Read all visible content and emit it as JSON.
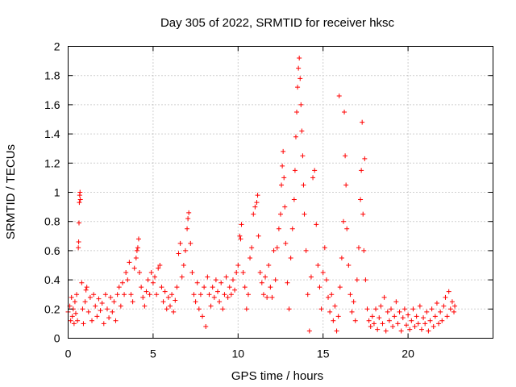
{
  "chart_data": {
    "type": "scatter",
    "title": "Day 305 of 2022, SRMTID for receiver hksc",
    "xlabel": "GPS time / hours",
    "ylabel": "SRMTID / TECUs",
    "xlim": [
      0,
      25
    ],
    "ylim": [
      0,
      2
    ],
    "x_ticks": [
      0,
      5,
      10,
      15,
      20
    ],
    "x_tick_labels": [
      "0",
      "5",
      "10",
      "15",
      "20"
    ],
    "y_ticks": [
      0,
      0.2,
      0.4,
      0.6,
      0.8,
      1.0,
      1.2,
      1.4,
      1.6,
      1.8,
      2.0
    ],
    "y_tick_labels": [
      "0",
      "0.2",
      "0.4",
      "0.6",
      "0.8",
      "1",
      "1.2",
      "1.4",
      "1.6",
      "1.8",
      "2"
    ],
    "grid": true,
    "marker": "+",
    "series_color": "#ff0000",
    "series": [
      {
        "name": "SRMTID",
        "points": [
          [
            0.0,
            0.18
          ],
          [
            0.1,
            0.22
          ],
          [
            0.15,
            0.12
          ],
          [
            0.2,
            0.28
          ],
          [
            0.25,
            0.15
          ],
          [
            0.3,
            0.2
          ],
          [
            0.35,
            0.1
          ],
          [
            0.4,
            0.25
          ],
          [
            0.45,
            0.17
          ],
          [
            0.5,
            0.3
          ],
          [
            0.55,
            0.12
          ],
          [
            0.6,
            0.62
          ],
          [
            0.62,
            0.66
          ],
          [
            0.64,
            0.79
          ],
          [
            0.66,
            0.93
          ],
          [
            0.68,
            0.98
          ],
          [
            0.7,
            1.0
          ],
          [
            0.72,
            0.95
          ],
          [
            0.8,
            0.38
          ],
          [
            0.85,
            0.2
          ],
          [
            0.9,
            0.1
          ],
          [
            1.0,
            0.25
          ],
          [
            1.05,
            0.33
          ],
          [
            1.1,
            0.35
          ],
          [
            1.2,
            0.18
          ],
          [
            1.3,
            0.28
          ],
          [
            1.4,
            0.12
          ],
          [
            1.5,
            0.3
          ],
          [
            1.6,
            0.22
          ],
          [
            1.7,
            0.15
          ],
          [
            1.8,
            0.27
          ],
          [
            1.9,
            0.19
          ],
          [
            2.0,
            0.24
          ],
          [
            2.1,
            0.1
          ],
          [
            2.2,
            0.3
          ],
          [
            2.3,
            0.2
          ],
          [
            2.4,
            0.14
          ],
          [
            2.5,
            0.28
          ],
          [
            2.6,
            0.18
          ],
          [
            2.7,
            0.25
          ],
          [
            2.8,
            0.12
          ],
          [
            2.9,
            0.3
          ],
          [
            3.0,
            0.35
          ],
          [
            3.1,
            0.22
          ],
          [
            3.2,
            0.38
          ],
          [
            3.3,
            0.3
          ],
          [
            3.4,
            0.45
          ],
          [
            3.5,
            0.4
          ],
          [
            3.6,
            0.52
          ],
          [
            3.7,
            0.3
          ],
          [
            3.8,
            0.25
          ],
          [
            3.9,
            0.48
          ],
          [
            4.0,
            0.55
          ],
          [
            4.05,
            0.6
          ],
          [
            4.1,
            0.62
          ],
          [
            4.15,
            0.68
          ],
          [
            4.2,
            0.45
          ],
          [
            4.3,
            0.35
          ],
          [
            4.4,
            0.28
          ],
          [
            4.5,
            0.22
          ],
          [
            4.6,
            0.32
          ],
          [
            4.7,
            0.4
          ],
          [
            4.8,
            0.3
          ],
          [
            4.9,
            0.45
          ],
          [
            5.0,
            0.38
          ],
          [
            5.1,
            0.42
          ],
          [
            5.2,
            0.3
          ],
          [
            5.3,
            0.48
          ],
          [
            5.4,
            0.5
          ],
          [
            5.5,
            0.35
          ],
          [
            5.6,
            0.25
          ],
          [
            5.7,
            0.32
          ],
          [
            5.8,
            0.2
          ],
          [
            5.9,
            0.28
          ],
          [
            6.0,
            0.22
          ],
          [
            6.1,
            0.3
          ],
          [
            6.2,
            0.18
          ],
          [
            6.3,
            0.26
          ],
          [
            6.4,
            0.35
          ],
          [
            6.5,
            0.58
          ],
          [
            6.6,
            0.65
          ],
          [
            6.7,
            0.42
          ],
          [
            6.8,
            0.5
          ],
          [
            6.9,
            0.6
          ],
          [
            7.0,
            0.75
          ],
          [
            7.05,
            0.82
          ],
          [
            7.1,
            0.86
          ],
          [
            7.2,
            0.65
          ],
          [
            7.3,
            0.45
          ],
          [
            7.4,
            0.3
          ],
          [
            7.5,
            0.25
          ],
          [
            7.6,
            0.38
          ],
          [
            7.7,
            0.2
          ],
          [
            7.8,
            0.3
          ],
          [
            7.9,
            0.15
          ],
          [
            8.0,
            0.35
          ],
          [
            8.1,
            0.08
          ],
          [
            8.2,
            0.42
          ],
          [
            8.3,
            0.3
          ],
          [
            8.4,
            0.22
          ],
          [
            8.5,
            0.35
          ],
          [
            8.6,
            0.28
          ],
          [
            8.7,
            0.4
          ],
          [
            8.8,
            0.32
          ],
          [
            8.9,
            0.25
          ],
          [
            9.0,
            0.38
          ],
          [
            9.1,
            0.2
          ],
          [
            9.2,
            0.3
          ],
          [
            9.3,
            0.42
          ],
          [
            9.4,
            0.28
          ],
          [
            9.5,
            0.35
          ],
          [
            9.6,
            0.3
          ],
          [
            9.7,
            0.4
          ],
          [
            9.8,
            0.33
          ],
          [
            9.9,
            0.45
          ],
          [
            10.0,
            0.5
          ],
          [
            10.1,
            0.7
          ],
          [
            10.15,
            0.68
          ],
          [
            10.2,
            0.78
          ],
          [
            10.3,
            0.45
          ],
          [
            10.4,
            0.35
          ],
          [
            10.5,
            0.2
          ],
          [
            10.6,
            0.3
          ],
          [
            10.7,
            0.55
          ],
          [
            10.8,
            0.62
          ],
          [
            10.9,
            0.85
          ],
          [
            11.0,
            0.9
          ],
          [
            11.1,
            0.93
          ],
          [
            11.15,
            0.98
          ],
          [
            11.2,
            0.7
          ],
          [
            11.3,
            0.45
          ],
          [
            11.4,
            0.38
          ],
          [
            11.5,
            0.3
          ],
          [
            11.6,
            0.42
          ],
          [
            11.7,
            0.28
          ],
          [
            11.8,
            0.5
          ],
          [
            11.9,
            0.35
          ],
          [
            12.0,
            0.28
          ],
          [
            12.1,
            0.6
          ],
          [
            12.2,
            0.4
          ],
          [
            12.3,
            0.62
          ],
          [
            12.4,
            0.75
          ],
          [
            12.5,
            0.85
          ],
          [
            12.55,
            1.05
          ],
          [
            12.6,
            1.18
          ],
          [
            12.65,
            1.28
          ],
          [
            12.7,
            1.1
          ],
          [
            12.75,
            0.9
          ],
          [
            12.8,
            0.65
          ],
          [
            12.9,
            0.38
          ],
          [
            13.0,
            0.2
          ],
          [
            13.1,
            0.55
          ],
          [
            13.2,
            0.75
          ],
          [
            13.3,
            0.95
          ],
          [
            13.35,
            1.15
          ],
          [
            13.4,
            1.38
          ],
          [
            13.45,
            1.55
          ],
          [
            13.5,
            1.72
          ],
          [
            13.55,
            1.85
          ],
          [
            13.6,
            1.92
          ],
          [
            13.65,
            1.78
          ],
          [
            13.7,
            1.6
          ],
          [
            13.75,
            1.42
          ],
          [
            13.8,
            1.25
          ],
          [
            13.85,
            1.05
          ],
          [
            13.9,
            0.85
          ],
          [
            14.0,
            0.6
          ],
          [
            14.1,
            0.3
          ],
          [
            14.2,
            0.05
          ],
          [
            14.3,
            0.42
          ],
          [
            14.4,
            1.1
          ],
          [
            14.5,
            1.15
          ],
          [
            14.6,
            0.78
          ],
          [
            14.7,
            0.5
          ],
          [
            14.8,
            0.35
          ],
          [
            14.9,
            0.2
          ],
          [
            15.0,
            0.45
          ],
          [
            15.1,
            0.62
          ],
          [
            15.2,
            0.4
          ],
          [
            15.3,
            0.28
          ],
          [
            15.4,
            0.18
          ],
          [
            15.5,
            0.3
          ],
          [
            15.6,
            0.12
          ],
          [
            15.7,
            0.22
          ],
          [
            15.8,
            0.05
          ],
          [
            15.9,
            0.15
          ],
          [
            15.95,
            1.66
          ],
          [
            16.0,
            0.35
          ],
          [
            16.1,
            0.55
          ],
          [
            16.2,
            0.8
          ],
          [
            16.25,
            1.55
          ],
          [
            16.3,
            1.25
          ],
          [
            16.35,
            1.05
          ],
          [
            16.4,
            0.75
          ],
          [
            16.5,
            0.5
          ],
          [
            16.6,
            0.3
          ],
          [
            16.7,
            0.18
          ],
          [
            16.8,
            0.25
          ],
          [
            16.9,
            0.12
          ],
          [
            17.0,
            0.4
          ],
          [
            17.1,
            0.62
          ],
          [
            17.2,
            0.95
          ],
          [
            17.25,
            1.15
          ],
          [
            17.3,
            1.48
          ],
          [
            17.35,
            0.85
          ],
          [
            17.4,
            0.6
          ],
          [
            17.45,
            1.23
          ],
          [
            17.5,
            0.4
          ],
          [
            17.6,
            0.2
          ],
          [
            17.7,
            0.12
          ],
          [
            17.8,
            0.08
          ],
          [
            17.9,
            0.15
          ],
          [
            18.0,
            0.1
          ],
          [
            18.1,
            0.2
          ],
          [
            18.2,
            0.06
          ],
          [
            18.3,
            0.14
          ],
          [
            18.4,
            0.22
          ],
          [
            18.5,
            0.1
          ],
          [
            18.6,
            0.28
          ],
          [
            18.7,
            0.05
          ],
          [
            18.8,
            0.18
          ],
          [
            18.9,
            0.12
          ],
          [
            19.0,
            0.2
          ],
          [
            19.1,
            0.08
          ],
          [
            19.2,
            0.15
          ],
          [
            19.3,
            0.25
          ],
          [
            19.4,
            0.1
          ],
          [
            19.5,
            0.18
          ],
          [
            19.6,
            0.05
          ],
          [
            19.7,
            0.14
          ],
          [
            19.8,
            0.2
          ],
          [
            19.9,
            0.09
          ],
          [
            20.0,
            0.16
          ],
          [
            20.1,
            0.06
          ],
          [
            20.2,
            0.12
          ],
          [
            20.3,
            0.2
          ],
          [
            20.4,
            0.08
          ],
          [
            20.5,
            0.15
          ],
          [
            20.6,
            0.1
          ],
          [
            20.7,
            0.22
          ],
          [
            20.8,
            0.06
          ],
          [
            20.9,
            0.14
          ],
          [
            21.0,
            0.1
          ],
          [
            21.1,
            0.18
          ],
          [
            21.2,
            0.05
          ],
          [
            21.3,
            0.12
          ],
          [
            21.4,
            0.2
          ],
          [
            21.5,
            0.08
          ],
          [
            21.6,
            0.15
          ],
          [
            21.7,
            0.24
          ],
          [
            21.8,
            0.1
          ],
          [
            21.9,
            0.18
          ],
          [
            22.0,
            0.12
          ],
          [
            22.1,
            0.22
          ],
          [
            22.2,
            0.28
          ],
          [
            22.3,
            0.15
          ],
          [
            22.4,
            0.32
          ],
          [
            22.5,
            0.2
          ],
          [
            22.6,
            0.25
          ],
          [
            22.7,
            0.18
          ],
          [
            22.75,
            0.22
          ]
        ]
      }
    ]
  }
}
